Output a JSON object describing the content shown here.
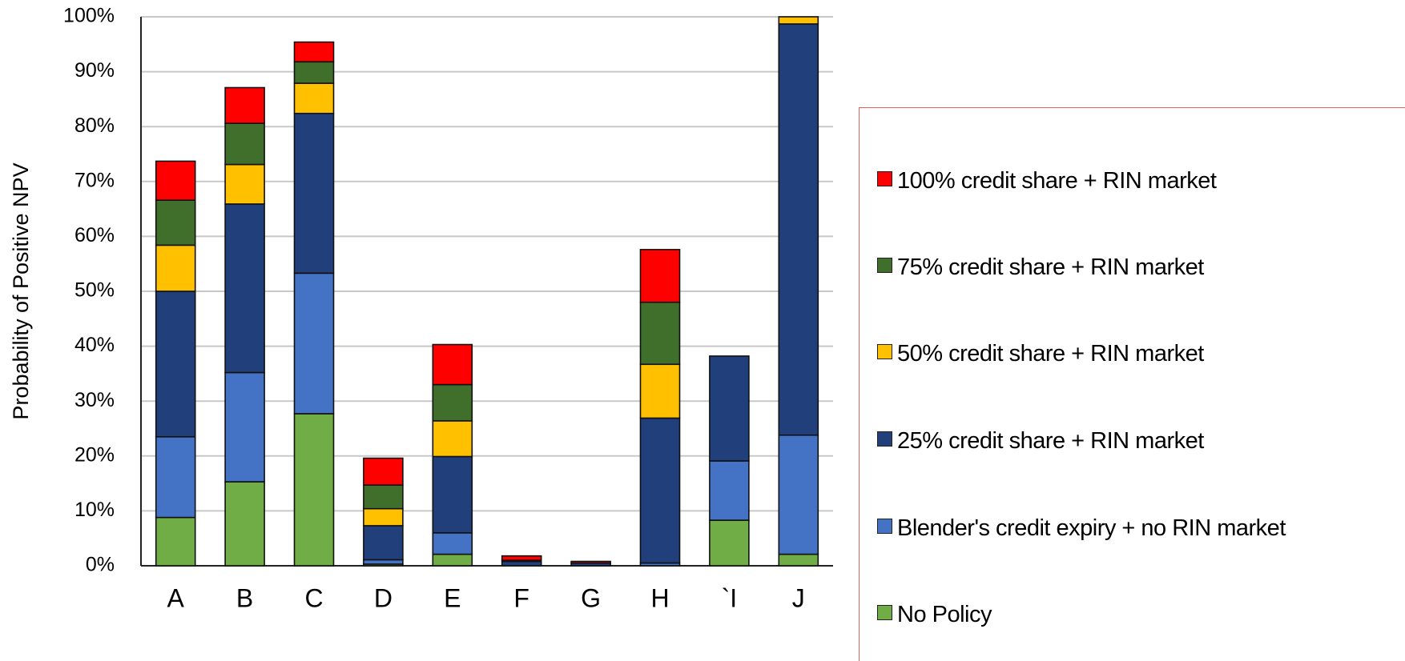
{
  "chart_data": {
    "type": "stacked_bar",
    "y_label": "Probability of Positive NPV",
    "categories": [
      "A",
      "B",
      "C",
      "D",
      "E",
      "F",
      "G",
      "H",
      "`I",
      "J"
    ],
    "series": [
      {
        "name": "No Policy",
        "color": "#70ad47",
        "values": [
          8.8,
          15.3,
          27.7,
          0.3,
          2.1,
          0,
          0,
          0,
          8.3,
          2.1
        ]
      },
      {
        "name": "Blender's credit expiry + no RIN market",
        "color": "#4472c4",
        "values": [
          14.7,
          19.9,
          25.6,
          0.8,
          3.9,
          0,
          0,
          0.5,
          10.8,
          21.7
        ]
      },
      {
        "name": "25% credit share + RIN market",
        "color": "#213f7a",
        "values": [
          26.5,
          30.7,
          29.1,
          6.2,
          13.9,
          0.8,
          0.5,
          26.4,
          19.1,
          74.9
        ]
      },
      {
        "name": "50% credit share + RIN market",
        "color": "#ffc000",
        "values": [
          8.4,
          7.2,
          5.5,
          3.1,
          6.5,
          0,
          0,
          9.8,
          0,
          1.3
        ]
      },
      {
        "name": "75% credit share + RIN market",
        "color": "#3f6f2a",
        "values": [
          8.2,
          7.5,
          3.9,
          4.3,
          6.6,
          0.2,
          0,
          11.3,
          0,
          0
        ]
      },
      {
        "name": "100% credit share + RIN market",
        "color": "#ff0000",
        "values": [
          7.1,
          6.5,
          3.6,
          4.9,
          7.3,
          0.8,
          0.3,
          9.6,
          0,
          0
        ]
      }
    ],
    "ylim": [
      0,
      100
    ],
    "yticks": [
      {
        "value": 0,
        "label": "0%"
      },
      {
        "value": 10,
        "label": "10%"
      },
      {
        "value": 20,
        "label": "20%"
      },
      {
        "value": 30,
        "label": "30%"
      },
      {
        "value": 40,
        "label": "40%"
      },
      {
        "value": 50,
        "label": "50%"
      },
      {
        "value": 60,
        "label": "60%"
      },
      {
        "value": 70,
        "label": "70%"
      },
      {
        "value": 80,
        "label": "80%"
      },
      {
        "value": 90,
        "label": "90%"
      },
      {
        "value": 100,
        "label": "100%"
      }
    ],
    "grid": true,
    "legend": "right"
  }
}
